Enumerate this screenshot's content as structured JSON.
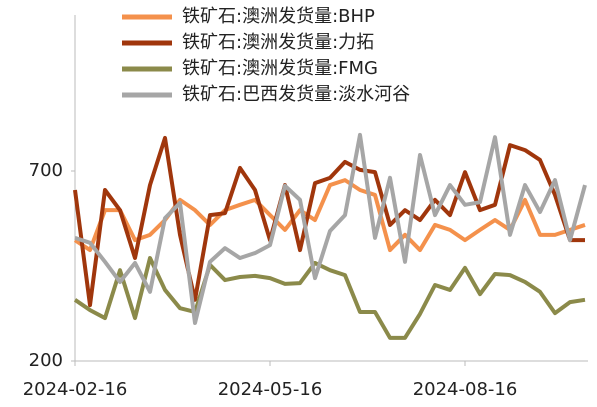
{
  "chart_data": {
    "type": "line",
    "categories": [
      "2024-02-16",
      null,
      null,
      null,
      null,
      null,
      null,
      null,
      null,
      null,
      null,
      null,
      null,
      "2024-05-16",
      null,
      null,
      null,
      null,
      null,
      null,
      null,
      null,
      null,
      null,
      null,
      null,
      "2024-08-16",
      null,
      null,
      null,
      null,
      null,
      null,
      null,
      null
    ],
    "series": [
      {
        "name": "铁矿石:澳洲发货量:BHP",
        "color": "#f4914c",
        "values": [
          518,
          492,
          597,
          597,
          518,
          532,
          571,
          624,
          597,
          558,
          597,
          611,
          624,
          584,
          545,
          597,
          571,
          663,
          676,
          650,
          637,
          492,
          532,
          492,
          558,
          545,
          518,
          545,
          571,
          545,
          624,
          532,
          532,
          545,
          558
        ]
      },
      {
        "name": "铁矿石:澳洲发货量:力拓",
        "color": "#a0360c",
        "values": [
          650,
          347,
          650,
          597,
          471,
          663,
          787,
          532,
          361,
          584,
          589,
          708,
          650,
          518,
          663,
          492,
          668,
          682,
          724,
          703,
          697,
          558,
          597,
          571,
          624,
          584,
          697,
          597,
          611,
          768,
          755,
          729,
          637,
          518,
          518
        ]
      },
      {
        "name": "铁矿石:澳洲发货量:FMG",
        "color": "#8b8a4a",
        "values": [
          361,
          334,
          313,
          439,
          313,
          471,
          387,
          339,
          329,
          453,
          413,
          421,
          424,
          418,
          403,
          405,
          458,
          439,
          426,
          329,
          329,
          261,
          261,
          324,
          400,
          387,
          445,
          376,
          429,
          426,
          408,
          382,
          326,
          355,
          361
        ]
      },
      {
        "name": "铁矿石:巴西发货量:淡水河谷",
        "color": "#a6a6a6",
        "values": [
          524,
          511,
          461,
          408,
          458,
          382,
          576,
          616,
          300,
          461,
          497,
          471,
          484,
          505,
          661,
          624,
          418,
          542,
          584,
          795,
          524,
          682,
          461,
          742,
          584,
          663,
          611,
          618,
          789,
          532,
          663,
          592,
          676,
          518,
          663
        ]
      }
    ],
    "ylim": [
      200,
      1100
    ],
    "yticks": [
      200,
      700
    ]
  }
}
